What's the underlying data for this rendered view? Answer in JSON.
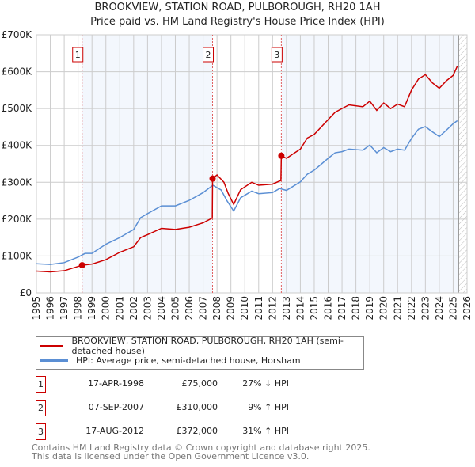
{
  "chart_data": {
    "type": "line",
    "title": "BROOKVIEW, STATION ROAD, PULBOROUGH, RH20 1AH",
    "subtitle": "Price paid vs. HM Land Registry's House Price Index (HPI)",
    "xlim": [
      1995,
      2026
    ],
    "ylim": [
      0,
      700000
    ],
    "x_ticks": [
      "1995",
      "1996",
      "1997",
      "1998",
      "1999",
      "2000",
      "2001",
      "2002",
      "2003",
      "2004",
      "2005",
      "2006",
      "2007",
      "2008",
      "2009",
      "2010",
      "2011",
      "2012",
      "2013",
      "2014",
      "2015",
      "2016",
      "2017",
      "2018",
      "2019",
      "2020",
      "2021",
      "2022",
      "2023",
      "2024",
      "2025",
      "2026"
    ],
    "y_ticks": [
      {
        "v": 0,
        "label": "£0"
      },
      {
        "v": 100000,
        "label": "£100K"
      },
      {
        "v": 200000,
        "label": "£200K"
      },
      {
        "v": 300000,
        "label": "£300K"
      },
      {
        "v": 400000,
        "label": "£400K"
      },
      {
        "v": 500000,
        "label": "£500K"
      },
      {
        "v": 600000,
        "label": "£600K"
      },
      {
        "v": 700000,
        "label": "£700K"
      }
    ],
    "series": [
      {
        "name": "BROOKVIEW, STATION ROAD, PULBOROUGH, RH20 1AH (semi-detached house)",
        "color": "#cc0000",
        "x": [
          1995,
          1996,
          1997,
          1998.29,
          1999,
          2000,
          2001,
          2002,
          2002.5,
          2003,
          2004,
          2005,
          2006,
          2007,
          2007.66,
          2007.68,
          2008,
          2008.5,
          2008.8,
          2009.2,
          2009.7,
          2010.5,
          2011,
          2012,
          2012.6,
          2012.63,
          2013,
          2014,
          2014.5,
          2015,
          2016,
          2016.5,
          2017,
          2017.5,
          2018.5,
          2019,
          2019.5,
          2020,
          2020.5,
          2021,
          2021.5,
          2022,
          2022.5,
          2023,
          2023.5,
          2024,
          2024.5,
          2025,
          2025.3
        ],
        "y": [
          59000,
          57000,
          60000,
          75000,
          78000,
          90000,
          110000,
          125000,
          150000,
          158000,
          175000,
          172000,
          178000,
          190000,
          203000,
          310000,
          320000,
          300000,
          270000,
          240000,
          280000,
          300000,
          292000,
          295000,
          305000,
          372000,
          365000,
          390000,
          420000,
          430000,
          470000,
          490000,
          500000,
          510000,
          505000,
          520000,
          495000,
          515000,
          500000,
          512000,
          505000,
          550000,
          580000,
          592000,
          570000,
          555000,
          575000,
          590000,
          615000
        ]
      },
      {
        "name": "HPI: Average price, semi-detached house, Horsham",
        "color": "#5b8fd4",
        "x": [
          1995,
          1996,
          1997,
          1998,
          1998.5,
          1999,
          2000,
          2001,
          2002,
          2002.5,
          2003,
          2004,
          2005,
          2006,
          2007,
          2007.7,
          2008.3,
          2008.7,
          2009.2,
          2009.7,
          2010.5,
          2011,
          2012,
          2012.5,
          2013,
          2014,
          2014.5,
          2015,
          2016,
          2016.5,
          2017,
          2017.5,
          2018.5,
          2019,
          2019.5,
          2020,
          2020.5,
          2021,
          2021.5,
          2022,
          2022.5,
          2023,
          2023.5,
          2024,
          2024.5,
          2025,
          2025.3
        ],
        "y": [
          79000,
          77000,
          82000,
          97000,
          107000,
          107000,
          132000,
          150000,
          172000,
          204000,
          215000,
          236000,
          236000,
          251000,
          272000,
          292000,
          279000,
          251000,
          222000,
          258000,
          276000,
          269000,
          272000,
          283000,
          278000,
          301000,
          322000,
          333000,
          365000,
          380000,
          383000,
          390000,
          387000,
          401000,
          380000,
          394000,
          383000,
          390000,
          387000,
          419000,
          444000,
          451000,
          437000,
          424000,
          441000,
          459000,
          467000
        ]
      }
    ],
    "sales": [
      {
        "n": "1",
        "x": 1998.29,
        "y": 75000,
        "date": "17-APR-1998",
        "price": "£75,000",
        "hpi": "27% ↓ HPI"
      },
      {
        "n": "2",
        "x": 2007.68,
        "y": 310000,
        "date": "07-SEP-2007",
        "price": "£310,000",
        "hpi": "9% ↑ HPI"
      },
      {
        "n": "3",
        "x": 2012.63,
        "y": 372000,
        "date": "17-AUG-2012",
        "price": "£372,000",
        "hpi": "31% ↑ HPI"
      }
    ],
    "data_end": 2025.4
  },
  "footer": {
    "line1": "Contains HM Land Registry data © Crown copyright and database right 2025.",
    "line2": "This data is licensed under the Open Government Licence v3.0."
  }
}
